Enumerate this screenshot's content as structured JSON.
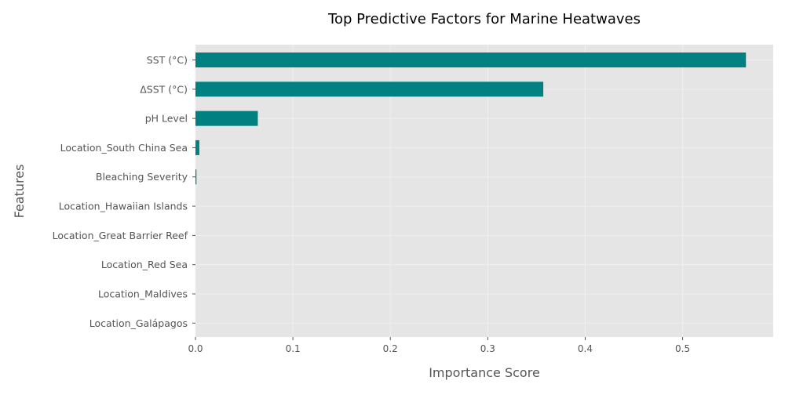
{
  "chart_data": {
    "type": "bar",
    "orientation": "horizontal",
    "title": "Top Predictive Factors for Marine Heatwaves",
    "xlabel": "Importance Score",
    "ylabel": "Features",
    "categories": [
      "SST (°C)",
      "ΔSST (°C)",
      "pH Level",
      "Location_South China Sea",
      "Bleaching Severity",
      "Location_Hawaiian Islands",
      "Location_Great Barrier Reef",
      "Location_Red Sea",
      "Location_Maldives",
      "Location_Galápagos"
    ],
    "values": [
      0.565,
      0.357,
      0.064,
      0.004,
      0.001,
      0.0,
      0.0,
      0.0,
      0.0,
      0.0
    ],
    "xlim": [
      0,
      0.593
    ],
    "xticks": [
      0.0,
      0.1,
      0.2,
      0.3,
      0.4,
      0.5
    ],
    "xtick_labels": [
      "0.0",
      "0.1",
      "0.2",
      "0.3",
      "0.4",
      "0.5"
    ],
    "grid": true,
    "colors": {
      "bar": "#008080",
      "plot_background": "#e5e5e5",
      "grid": "#f0f0f0",
      "tick_text": "#555555",
      "axis_label": "#555555",
      "title": "#000000"
    }
  }
}
